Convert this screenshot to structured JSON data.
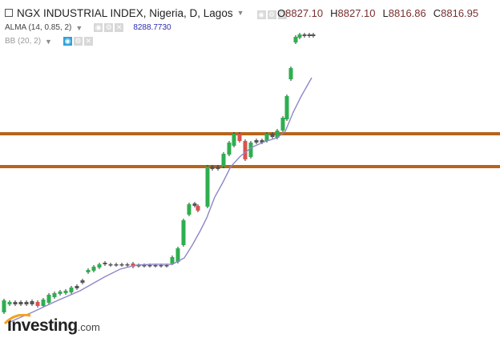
{
  "header": {
    "title": "NGX INDUSTRIAL INDEX, Nigeria, D, Lagos",
    "ohlc": [
      {
        "k": "O",
        "v": "8827.10"
      },
      {
        "k": "H",
        "v": "8827.10"
      },
      {
        "k": "L",
        "v": "8816.86"
      },
      {
        "k": "C",
        "v": "8816.95"
      }
    ]
  },
  "indicators": {
    "alma": {
      "label": "ALMA (14, 0.85, 2)",
      "value": "8288.7730"
    },
    "bb": {
      "label": "BB (20, 2)"
    }
  },
  "logo": {
    "main": "Investing",
    "suffix": ".com"
  },
  "colors": {
    "up": "#2eae4f",
    "down": "#d9534f",
    "flat": "#555555",
    "alma_line": "#8d87c9",
    "hline": "#b6651a",
    "ohlc_values": "#7a2f2f",
    "active_button": "#2fa3d8"
  },
  "chart_data": {
    "type": "candlestick",
    "series": [
      {
        "name": "ALMA (14, 0.85, 2)",
        "type": "line",
        "values": []
      }
    ],
    "overlays": [
      "ALMA (14, 0.85, 2)",
      "BB (20, 2)"
    ],
    "horizontal_lines": 2
  }
}
